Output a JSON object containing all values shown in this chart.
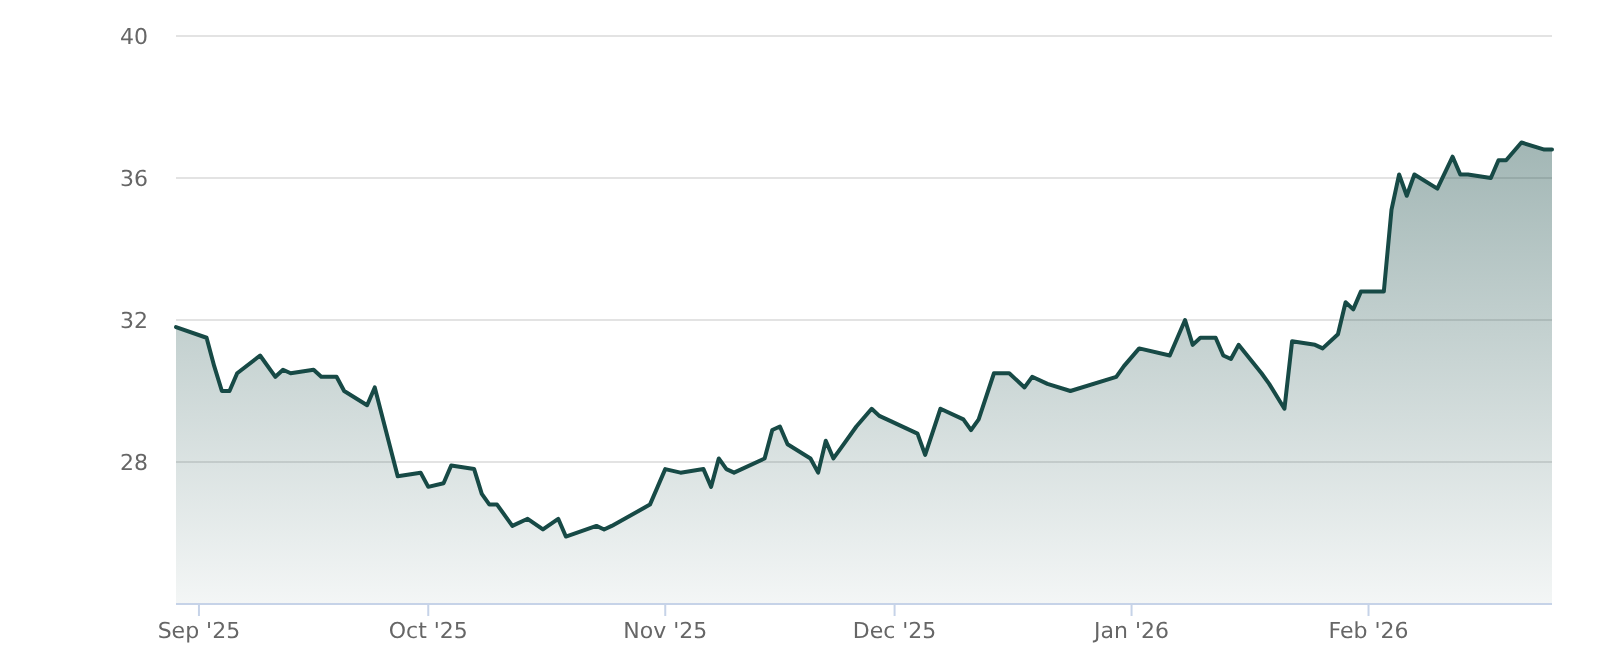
{
  "chart_data": {
    "type": "area",
    "xlim": [
      "2025-08-29",
      "2026-02-25"
    ],
    "ylim": [
      24,
      40
    ],
    "yticks": [
      28,
      32,
      36,
      40
    ],
    "xticks": [
      {
        "value": "2025-09-01",
        "label": "Sep '25"
      },
      {
        "value": "2025-10-01",
        "label": "Oct '25"
      },
      {
        "value": "2025-11-01",
        "label": "Nov '25"
      },
      {
        "value": "2025-12-01",
        "label": "Dec '25"
      },
      {
        "value": "2026-01-01",
        "label": "Jan '26"
      },
      {
        "value": "2026-02-01",
        "label": "Feb '26"
      }
    ],
    "grid": "y",
    "x": [
      "2025-08-29",
      "2025-09-02",
      "2025-09-03",
      "2025-09-04",
      "2025-09-05",
      "2025-09-06",
      "2025-09-09",
      "2025-09-11",
      "2025-09-12",
      "2025-09-13",
      "2025-09-16",
      "2025-09-17",
      "2025-09-19",
      "2025-09-20",
      "2025-09-23",
      "2025-09-24",
      "2025-09-27",
      "2025-09-30",
      "2025-10-01",
      "2025-10-03",
      "2025-10-04",
      "2025-10-07",
      "2025-10-08",
      "2025-10-09",
      "2025-10-10",
      "2025-10-12",
      "2025-10-14",
      "2025-10-16",
      "2025-10-18",
      "2025-10-19",
      "2025-10-23",
      "2025-10-24",
      "2025-10-25",
      "2025-10-30",
      "2025-10-31",
      "2025-11-01",
      "2025-11-03",
      "2025-11-06",
      "2025-11-07",
      "2025-11-08",
      "2025-11-09",
      "2025-11-10",
      "2025-11-14",
      "2025-11-15",
      "2025-11-16",
      "2025-11-17",
      "2025-11-20",
      "2025-11-21",
      "2025-11-22",
      "2025-11-23",
      "2025-11-24",
      "2025-11-26",
      "2025-11-28",
      "2025-11-29",
      "2025-11-30",
      "2025-12-04",
      "2025-12-05",
      "2025-12-07",
      "2025-12-10",
      "2025-12-11",
      "2025-12-12",
      "2025-12-14",
      "2025-12-16",
      "2025-12-18",
      "2025-12-19",
      "2025-12-21",
      "2025-12-24",
      "2025-12-30",
      "2025-12-31",
      "2026-01-02",
      "2026-01-06",
      "2026-01-07",
      "2026-01-08",
      "2026-01-09",
      "2026-01-10",
      "2026-01-12",
      "2026-01-13",
      "2026-01-14",
      "2026-01-15",
      "2026-01-18",
      "2026-01-19",
      "2026-01-21",
      "2026-01-22",
      "2026-01-25",
      "2026-01-26",
      "2026-01-28",
      "2026-01-29",
      "2026-01-30",
      "2026-01-31",
      "2026-02-03",
      "2026-02-04",
      "2026-02-05",
      "2026-02-06",
      "2026-02-07",
      "2026-02-10",
      "2026-02-12",
      "2026-02-13",
      "2026-02-14",
      "2026-02-17",
      "2026-02-18",
      "2026-02-19",
      "2026-02-21",
      "2026-02-24",
      "2026-02-25"
    ],
    "series": [
      {
        "color": "#174a46",
        "values": [
          31.8,
          31.5,
          30.7,
          30.0,
          30.0,
          30.5,
          31.0,
          30.4,
          30.6,
          30.5,
          30.6,
          30.4,
          30.4,
          30.0,
          29.6,
          30.1,
          27.6,
          27.7,
          27.3,
          27.4,
          27.9,
          27.8,
          27.1,
          26.8,
          26.8,
          26.2,
          26.4,
          26.1,
          26.4,
          25.9,
          26.2,
          26.1,
          26.2,
          26.8,
          27.3,
          27.8,
          27.7,
          27.8,
          27.3,
          28.1,
          27.8,
          27.7,
          28.1,
          28.9,
          29.0,
          28.5,
          28.1,
          27.7,
          28.6,
          28.1,
          28.4,
          29.0,
          29.5,
          29.3,
          29.2,
          28.8,
          28.2,
          29.5,
          29.2,
          28.9,
          29.2,
          30.5,
          30.5,
          30.1,
          30.4,
          30.2,
          30.0,
          30.4,
          30.7,
          31.2,
          31.0,
          31.5,
          32.0,
          31.3,
          31.5,
          31.5,
          31.0,
          30.9,
          31.3,
          30.5,
          30.2,
          29.5,
          31.4,
          31.3,
          31.2,
          31.6,
          32.5,
          32.3,
          32.8,
          32.8,
          35.1,
          36.1,
          35.5,
          36.1,
          35.7,
          36.6,
          36.1,
          36.1,
          36.0,
          36.5,
          36.5,
          37.0,
          36.8,
          36.8
        ]
      }
    ]
  }
}
